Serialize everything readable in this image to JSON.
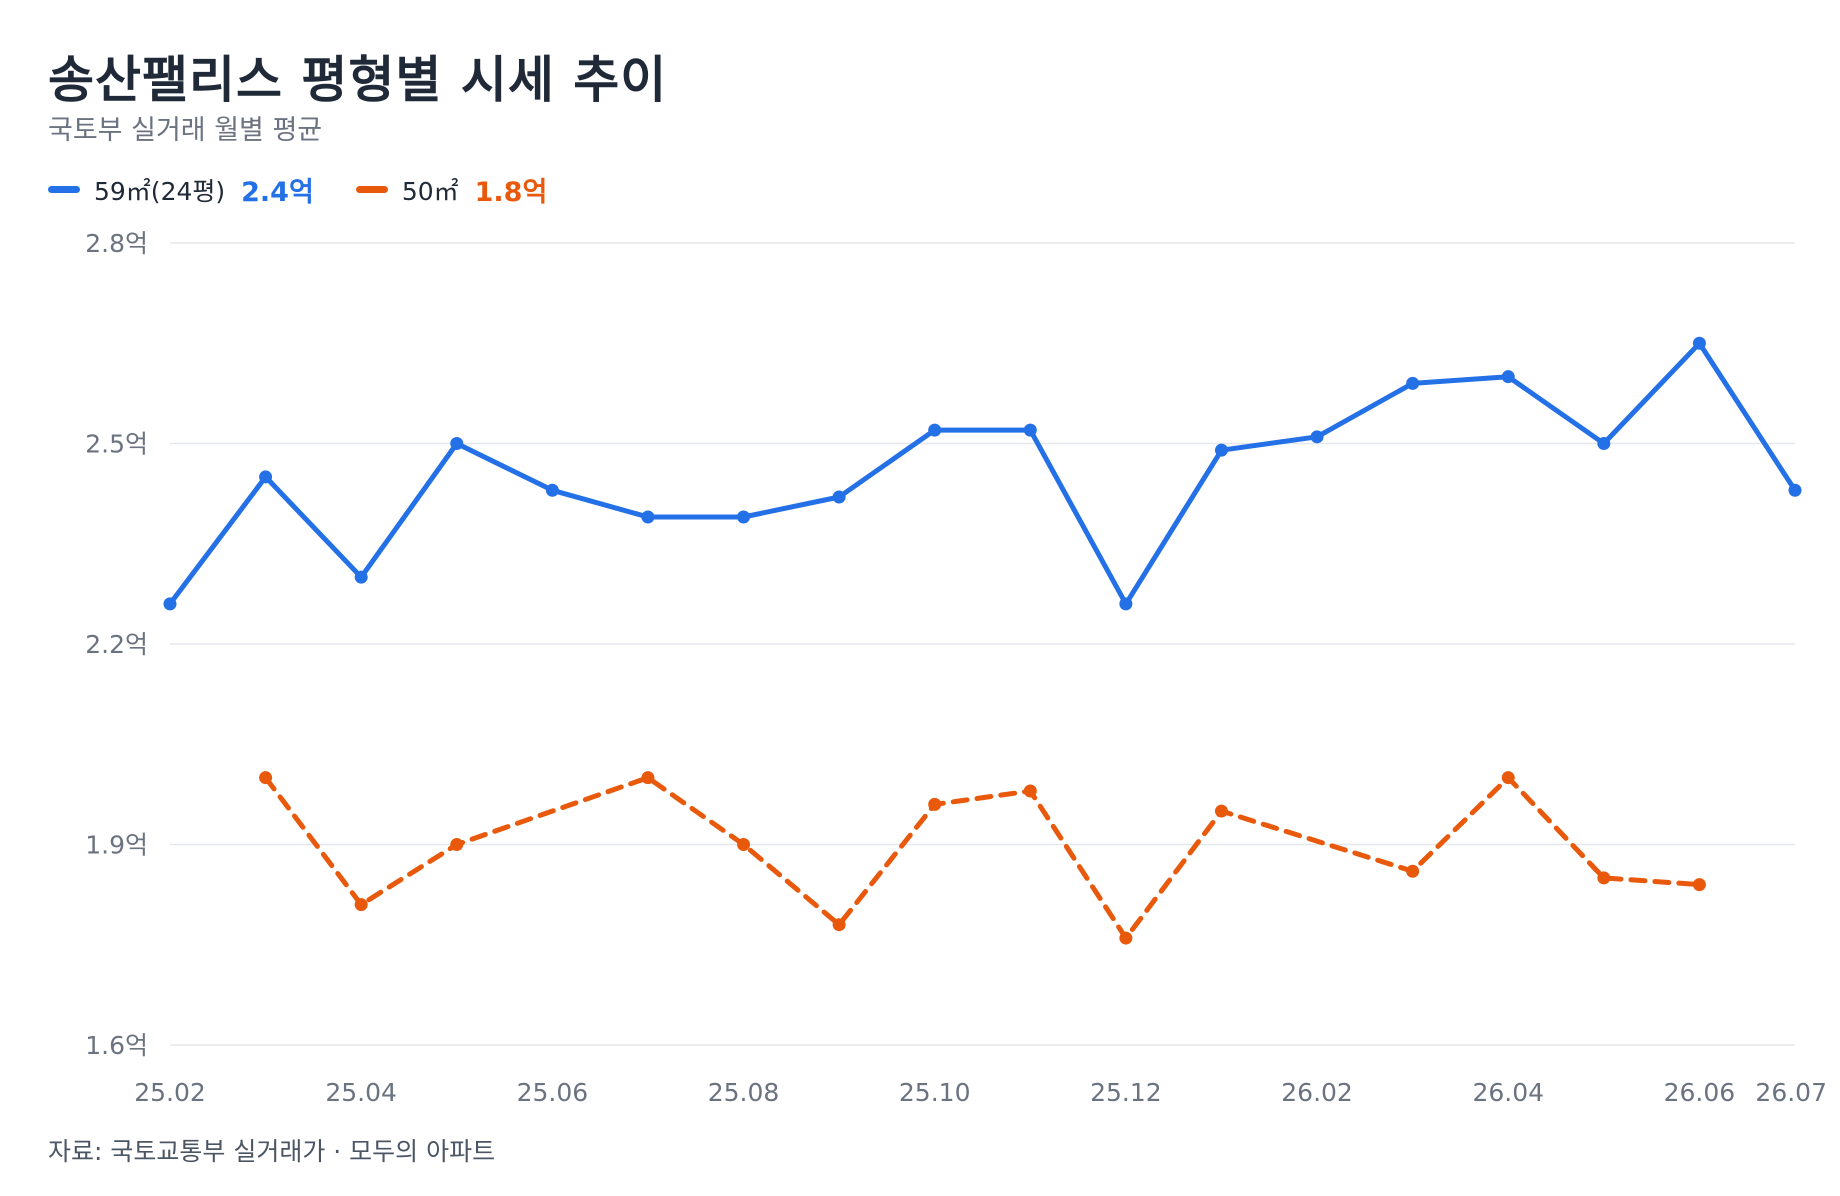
{
  "header": {
    "title": "송산팰리스 평형별 시세 추이",
    "subtitle": "국토부 실거래 월별 평균"
  },
  "legend": [
    {
      "name": "59㎡(24평)",
      "value": "2.4억",
      "color": "#2470e6"
    },
    {
      "name": "50㎡",
      "value": "1.8억",
      "color": "#e8590c"
    }
  ],
  "footer": {
    "source": "자료: 국토교통부 실거래가 · 모두의 아파트"
  },
  "chart_data": {
    "type": "line",
    "x": [
      "25.02",
      "25.03",
      "25.04",
      "25.05",
      "25.06",
      "25.07",
      "25.08",
      "25.09",
      "25.10",
      "25.11",
      "25.12",
      "26.01",
      "26.02",
      "26.03",
      "26.04",
      "26.05",
      "26.06",
      "26.07"
    ],
    "x_tick_labels": [
      "25.02",
      "25.04",
      "25.06",
      "25.08",
      "25.10",
      "25.12",
      "26.02",
      "26.04",
      "26.06",
      "26.07"
    ],
    "y_tick_labels": [
      "2.8억",
      "2.5억",
      "2.2억",
      "1.9억",
      "1.6억"
    ],
    "y_ticks": [
      2.8,
      2.5,
      2.2,
      1.9,
      1.6
    ],
    "ylim": [
      1.6,
      2.8
    ],
    "grid": true,
    "legend_position": "top-left",
    "series": [
      {
        "name": "59㎡(24평)",
        "color": "#2470e6",
        "style": "solid",
        "values": [
          2.26,
          2.45,
          2.3,
          2.5,
          2.43,
          2.39,
          2.39,
          2.42,
          2.52,
          2.52,
          2.26,
          2.49,
          2.51,
          2.59,
          2.6,
          2.5,
          2.65,
          2.43
        ]
      },
      {
        "name": "50㎡",
        "color": "#e8590c",
        "style": "dashed",
        "values": [
          null,
          2.0,
          1.81,
          1.9,
          null,
          2.0,
          1.9,
          1.78,
          1.96,
          1.98,
          1.76,
          1.95,
          null,
          1.86,
          2.0,
          1.85,
          1.84,
          null
        ]
      }
    ]
  }
}
